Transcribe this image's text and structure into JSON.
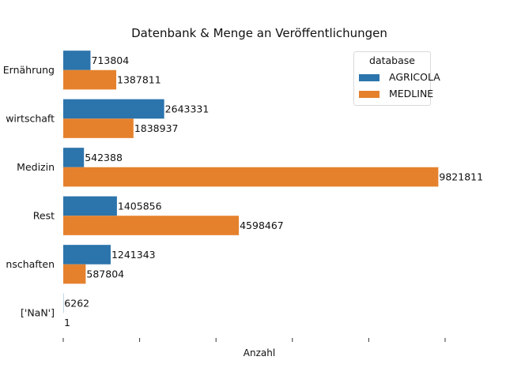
{
  "chart_data": {
    "type": "bar",
    "orientation": "horizontal",
    "title": "Datenbank & Menge an Veröffentlichungen",
    "xlabel": "Anzahl",
    "ylabel": "",
    "categories": [
      "Ernährung",
      "Landwirtschaft",
      "Medizin",
      "Rest",
      "Naturwissenschaften",
      "['NaN']"
    ],
    "category_labels_visible": [
      "Ernährung",
      "wirtschaft",
      "Medizin",
      "Rest",
      "nschaften",
      "['NaN']"
    ],
    "series": [
      {
        "name": "AGRICOLA",
        "color": "#2c74ac",
        "values": [
          713804,
          2643331,
          542388,
          1405856,
          1241343,
          6262
        ]
      },
      {
        "name": "MEDLINE",
        "color": "#e5812d",
        "values": [
          1387811,
          1838937,
          9821811,
          4598467,
          587804,
          1
        ]
      }
    ],
    "xlim": [
      0,
      10000000
    ],
    "x_tick_count": 6,
    "x_tick_labels_visible": false,
    "grid": false,
    "legend": {
      "title": "database",
      "placement": "top-right"
    }
  }
}
